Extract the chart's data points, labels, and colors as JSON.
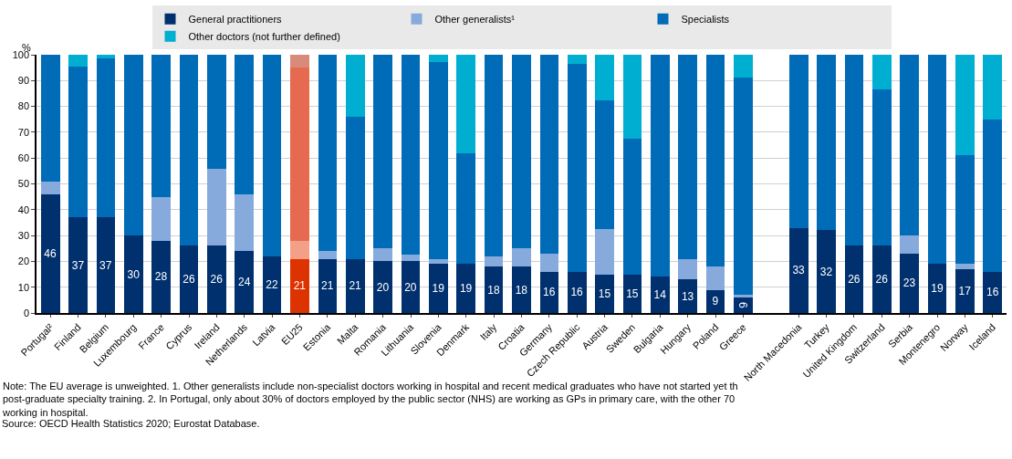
{
  "chart_data": {
    "type": "bar",
    "stacked": true,
    "ylabel": "%",
    "ylim": [
      0,
      100
    ],
    "yticks": [
      0,
      10,
      20,
      30,
      40,
      50,
      60,
      70,
      80,
      90,
      100
    ],
    "grid": "y",
    "legend": "top",
    "categories": [
      "Portugal²",
      "Finland",
      "Belgium",
      "Luxembourg",
      "France",
      "Cyprus",
      "Ireland",
      "Netherlands",
      "Latvia",
      "EU25",
      "Estonia",
      "Malta",
      "Romania",
      "Lithuania",
      "Slovenia",
      "Denmark",
      "Italy",
      "Croatia",
      "Germany",
      "Czech Republic",
      "Austria",
      "Sweden",
      "Bulgaria",
      "Hungary",
      "Poland",
      "Greece",
      null,
      "North Macedonia",
      "Turkey",
      "United Kingdom",
      "Switzerland",
      "Serbia",
      "Montenegro",
      "Norway",
      "Iceland"
    ],
    "series": [
      {
        "name": "General practitioners",
        "color": "#00306e",
        "colors": [
          "#00306e",
          "#00306e",
          "#00306e",
          "#00306e",
          "#00306e",
          "#00306e",
          "#00306e",
          "#00306e",
          "#00306e",
          "#dc3300",
          "#00306e",
          "#00306e",
          "#00306e",
          "#00306e",
          "#00306e",
          "#00306e",
          "#00306e",
          "#00306e",
          "#00306e",
          "#00306e",
          "#00306e",
          "#00306e",
          "#00306e",
          "#00306e",
          "#00306e",
          "#00306e",
          "#00306e",
          "#00306e",
          "#00306e",
          "#00306e",
          "#00306e",
          "#00306e",
          "#00306e",
          "#00306e",
          "#00306e"
        ],
        "values": [
          46,
          37,
          37,
          30,
          28,
          26,
          26,
          24,
          22,
          21,
          21,
          21,
          20,
          20,
          19,
          19,
          18,
          18,
          16,
          16,
          15,
          15,
          14,
          13,
          9,
          6,
          null,
          33,
          32,
          26,
          26,
          23,
          19,
          17,
          16
        ],
        "value_labels": [
          "46",
          "37",
          "37",
          "30",
          "28",
          "26",
          "26",
          "24",
          "22",
          "21",
          "21",
          "21",
          "20",
          "20",
          "19",
          "19",
          "18",
          "18",
          "16",
          "16",
          "15",
          "15",
          "14",
          "13",
          "9",
          "6",
          null,
          "33",
          "32",
          "26",
          "26",
          "23",
          "19",
          "17",
          "16"
        ]
      },
      {
        "name": "Other generalists¹",
        "color": "#86aadc",
        "colors": [
          "#86aadc",
          "#86aadc",
          "#86aadc",
          "#86aadc",
          "#86aadc",
          "#86aadc",
          "#86aadc",
          "#86aadc",
          "#86aadc",
          "#f4a088",
          "#86aadc",
          "#86aadc",
          "#86aadc",
          "#86aadc",
          "#86aadc",
          "#86aadc",
          "#86aadc",
          "#86aadc",
          "#86aadc",
          "#86aadc",
          "#86aadc",
          "#86aadc",
          "#86aadc",
          "#86aadc",
          "#86aadc",
          "#86aadc",
          "#86aadc",
          "#86aadc",
          "#86aadc",
          "#86aadc",
          "#86aadc",
          "#86aadc",
          "#86aadc",
          "#86aadc",
          "#86aadc"
        ],
        "values": [
          5,
          0,
          0,
          0,
          17,
          0,
          30,
          22,
          0,
          7,
          3,
          0,
          5,
          2.5,
          2,
          0,
          4,
          7,
          7,
          0,
          17.5,
          0,
          0,
          8,
          9,
          1,
          null,
          0,
          0,
          0,
          0,
          7,
          0,
          2,
          0
        ]
      },
      {
        "name": "Specialists",
        "color": "#006cb8",
        "colors": [
          "#006cb8",
          "#006cb8",
          "#006cb8",
          "#006cb8",
          "#006cb8",
          "#006cb8",
          "#006cb8",
          "#006cb8",
          "#006cb8",
          "#e56a50",
          "#006cb8",
          "#006cb8",
          "#006cb8",
          "#006cb8",
          "#006cb8",
          "#006cb8",
          "#006cb8",
          "#006cb8",
          "#006cb8",
          "#006cb8",
          "#006cb8",
          "#006cb8",
          "#006cb8",
          "#006cb8",
          "#006cb8",
          "#006cb8",
          "#006cb8",
          "#006cb8",
          "#006cb8",
          "#006cb8",
          "#006cb8",
          "#006cb8",
          "#006cb8",
          "#006cb8",
          "#006cb8"
        ],
        "values": [
          49,
          58.5,
          61.5,
          70,
          55,
          74,
          44,
          54,
          78,
          67,
          76,
          55,
          75,
          77.5,
          76,
          43,
          78,
          75,
          77,
          80.5,
          50,
          52.5,
          86,
          79,
          82,
          84,
          null,
          67,
          68,
          74,
          60.5,
          70,
          81,
          42,
          59
        ]
      },
      {
        "name": "Other doctors (not further defined)",
        "color": "#00aed1",
        "colors": [
          "#00aed1",
          "#00aed1",
          "#00aed1",
          "#00aed1",
          "#00aed1",
          "#00aed1",
          "#00aed1",
          "#00aed1",
          "#00aed1",
          "#d98a7a",
          "#00aed1",
          "#00aed1",
          "#00aed1",
          "#00aed1",
          "#00aed1",
          "#00aed1",
          "#00aed1",
          "#00aed1",
          "#00aed1",
          "#00aed1",
          "#00aed1",
          "#00aed1",
          "#00aed1",
          "#00aed1",
          "#00aed1",
          "#00aed1",
          "#00aed1",
          "#00aed1",
          "#00aed1",
          "#00aed1",
          "#00aed1",
          "#00aed1",
          "#00aed1",
          "#00aed1",
          "#00aed1"
        ],
        "values": [
          0,
          4.5,
          1.5,
          0,
          0,
          0,
          0,
          0,
          0,
          5,
          0,
          24,
          0,
          0,
          3,
          38,
          0,
          0,
          0,
          3.5,
          17.5,
          32.5,
          0,
          0,
          0,
          9,
          null,
          0,
          0,
          0,
          13.5,
          0,
          0,
          39,
          25
        ]
      }
    ],
    "annotations": [
      "Note: The EU average is unweighted. 1. Other generalists include non-specialist doctors working in hospital and recent medical graduates who have not started yet th\npost-graduate specialty training. 2. In Portugal, only about 30% of doctors employed by the public sector (NHS) are working as GPs in primary care, with the other 70\nworking in hospital.",
      "Source: OECD Health Statistics 2020; Eurostat Database."
    ]
  }
}
